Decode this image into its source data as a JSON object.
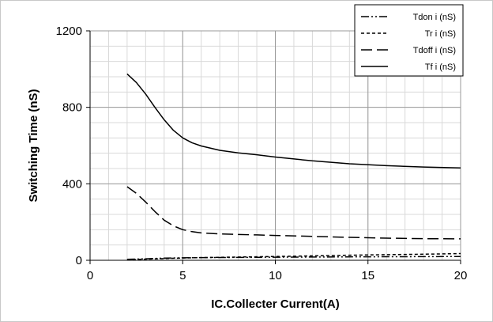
{
  "chart_data": {
    "type": "line",
    "title": "",
    "xlabel": "IC.Collecter Current(A)",
    "ylabel": "Switching Time (nS)",
    "xlim": [
      0,
      20
    ],
    "ylim": [
      0,
      1200
    ],
    "xticks": [
      0,
      5,
      10,
      15,
      20
    ],
    "yticks": [
      0,
      400,
      800,
      1200
    ],
    "grid": true,
    "minor_grid": true,
    "legend_position": "top-right",
    "series": [
      {
        "name": "Tdon i (nS)",
        "dash": "dash-dot-dot",
        "color": "#000000",
        "x": [
          2,
          3,
          4,
          5,
          6,
          8,
          10,
          12,
          15,
          18,
          20
        ],
        "y": [
          5,
          8,
          11,
          13,
          14,
          15,
          16,
          17,
          18,
          19,
          20
        ]
      },
      {
        "name": "Tr i (nS)",
        "dash": "short-dash",
        "color": "#000000",
        "x": [
          2,
          3,
          4,
          5,
          6,
          8,
          10,
          12,
          15,
          18,
          20
        ],
        "y": [
          3,
          6,
          9,
          12,
          14,
          17,
          20,
          23,
          28,
          32,
          35
        ]
      },
      {
        "name": "Tdoff i (nS)",
        "dash": "long-dash",
        "color": "#000000",
        "x": [
          2,
          2.5,
          3,
          3.5,
          4,
          4.5,
          5,
          5.5,
          6,
          7,
          8,
          9,
          10,
          12,
          14,
          16,
          18,
          20
        ],
        "y": [
          385,
          350,
          305,
          255,
          210,
          180,
          160,
          150,
          143,
          138,
          135,
          133,
          130,
          125,
          120,
          116,
          113,
          112
        ]
      },
      {
        "name": "Tf i (nS)",
        "dash": "solid",
        "color": "#000000",
        "x": [
          2,
          2.5,
          3,
          3.5,
          4,
          4.5,
          5,
          5.5,
          6,
          7,
          8,
          9,
          10,
          12,
          14,
          16,
          18,
          20
        ],
        "y": [
          975,
          930,
          870,
          800,
          735,
          680,
          640,
          615,
          598,
          575,
          562,
          552,
          540,
          520,
          505,
          495,
          488,
          483
        ]
      }
    ]
  }
}
